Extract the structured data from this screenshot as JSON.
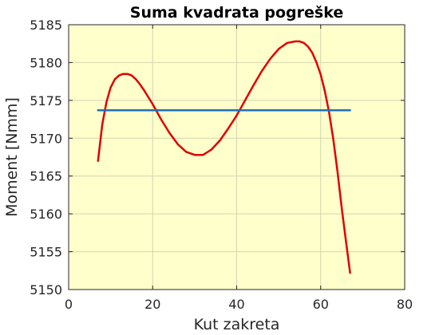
{
  "chart_data": {
    "type": "line",
    "title": "Suma kvadrata pogreške",
    "xlabel": "Kut zakreta",
    "ylabel": "Moment [Nmm]",
    "xlim": [
      0,
      80
    ],
    "ylim": [
      5150,
      5185
    ],
    "xticks": [
      0,
      20,
      40,
      60,
      80
    ],
    "yticks": [
      5150,
      5155,
      5160,
      5165,
      5170,
      5175,
      5180,
      5185
    ],
    "grid": true,
    "background": "#ffffcc",
    "series": [
      {
        "color": "#e00000",
        "x": [
          7,
          8,
          9,
          10,
          11,
          12,
          13,
          14,
          15,
          16,
          17,
          18,
          19,
          20,
          22,
          24,
          26,
          28,
          30,
          32,
          34,
          36,
          38,
          40,
          42,
          44,
          46,
          48,
          50,
          52,
          54,
          55,
          56,
          57,
          58,
          59,
          60,
          61,
          62,
          63,
          64,
          65,
          66,
          67
        ],
        "y": [
          5167.0,
          5171.8,
          5174.8,
          5176.7,
          5177.8,
          5178.3,
          5178.5,
          5178.5,
          5178.3,
          5177.8,
          5177.1,
          5176.3,
          5175.4,
          5174.5,
          5172.5,
          5170.7,
          5169.2,
          5168.2,
          5167.8,
          5167.8,
          5168.5,
          5169.7,
          5171.3,
          5173.0,
          5175.0,
          5177.0,
          5178.9,
          5180.5,
          5181.8,
          5182.6,
          5182.8,
          5182.8,
          5182.6,
          5182.1,
          5181.3,
          5180.0,
          5178.4,
          5176.2,
          5173.4,
          5169.9,
          5165.6,
          5160.8,
          5156.5,
          5152.2
        ]
      },
      {
        "color": "#1f6fb8",
        "x": [
          7,
          67
        ],
        "y": [
          5173.7,
          5173.7
        ]
      }
    ]
  }
}
